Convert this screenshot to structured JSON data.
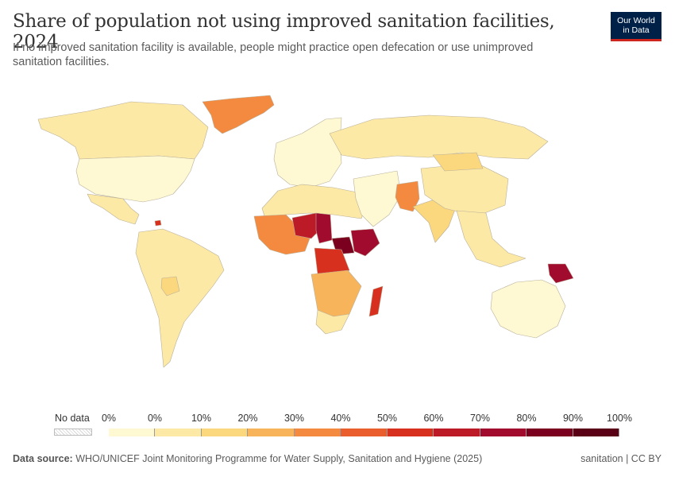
{
  "header": {
    "title": "Share of population not using improved sanitation facilities, 2024",
    "subtitle": "If no improved sanitation facility is available, people might practice open defecation or use unimproved sanitation facilities.",
    "logo_line1": "Our World",
    "logo_line2": "in Data"
  },
  "legend": {
    "no_data_label": "No data",
    "tick_labels": [
      "0%",
      "0%",
      "10%",
      "20%",
      "30%",
      "40%",
      "50%",
      "60%",
      "70%",
      "80%",
      "90%",
      "100%"
    ],
    "bin_colors": [
      "#fef9d3",
      "#fde9a6",
      "#fbd77e",
      "#f7b45a",
      "#f38a3f",
      "#ea5d2c",
      "#d7301f",
      "#bd1a28",
      "#a10b2d",
      "#7b0020",
      "#5a0016"
    ]
  },
  "map_regions": [
    {
      "name": "Canada",
      "color": "#fde9a6"
    },
    {
      "name": "United States",
      "color": "#fef9d3"
    },
    {
      "name": "Mexico",
      "color": "#fde9a6"
    },
    {
      "name": "Greenland",
      "color": "#f38a3f"
    },
    {
      "name": "Haiti",
      "color": "#d7301f"
    },
    {
      "name": "South America",
      "color": "#fde9a6"
    },
    {
      "name": "Bolivia",
      "color": "#fbd77e"
    },
    {
      "name": "Europe",
      "color": "#fef9d3"
    },
    {
      "name": "Russia",
      "color": "#fde9a6"
    },
    {
      "name": "North Africa",
      "color": "#fde9a6"
    },
    {
      "name": "West Africa",
      "color": "#f38a3f"
    },
    {
      "name": "Niger",
      "color": "#bd1a28"
    },
    {
      "name": "Chad",
      "color": "#a10b2d"
    },
    {
      "name": "South Sudan",
      "color": "#7b0020"
    },
    {
      "name": "Ethiopia",
      "color": "#a10b2d"
    },
    {
      "name": "DR Congo",
      "color": "#d7301f"
    },
    {
      "name": "Madagascar",
      "color": "#d7301f"
    },
    {
      "name": "Southern Africa",
      "color": "#f7b45a"
    },
    {
      "name": "South Africa",
      "color": "#fde9a6"
    },
    {
      "name": "Middle East",
      "color": "#fef9d3"
    },
    {
      "name": "Afghanistan",
      "color": "#f38a3f"
    },
    {
      "name": "India",
      "color": "#fbd77e"
    },
    {
      "name": "China",
      "color": "#fde9a6"
    },
    {
      "name": "Mongolia",
      "color": "#fbd77e"
    },
    {
      "name": "Southeast Asia",
      "color": "#fde9a6"
    },
    {
      "name": "Papua New Guinea",
      "color": "#a10b2d"
    },
    {
      "name": "Australia",
      "color": "#fef9d3"
    }
  ],
  "footer": {
    "source_label": "Data source:",
    "source_text": "WHO/UNICEF Joint Monitoring Programme for Water Supply, Sanitation and Hygiene (2025)",
    "right_text": "sanitation | CC BY"
  }
}
